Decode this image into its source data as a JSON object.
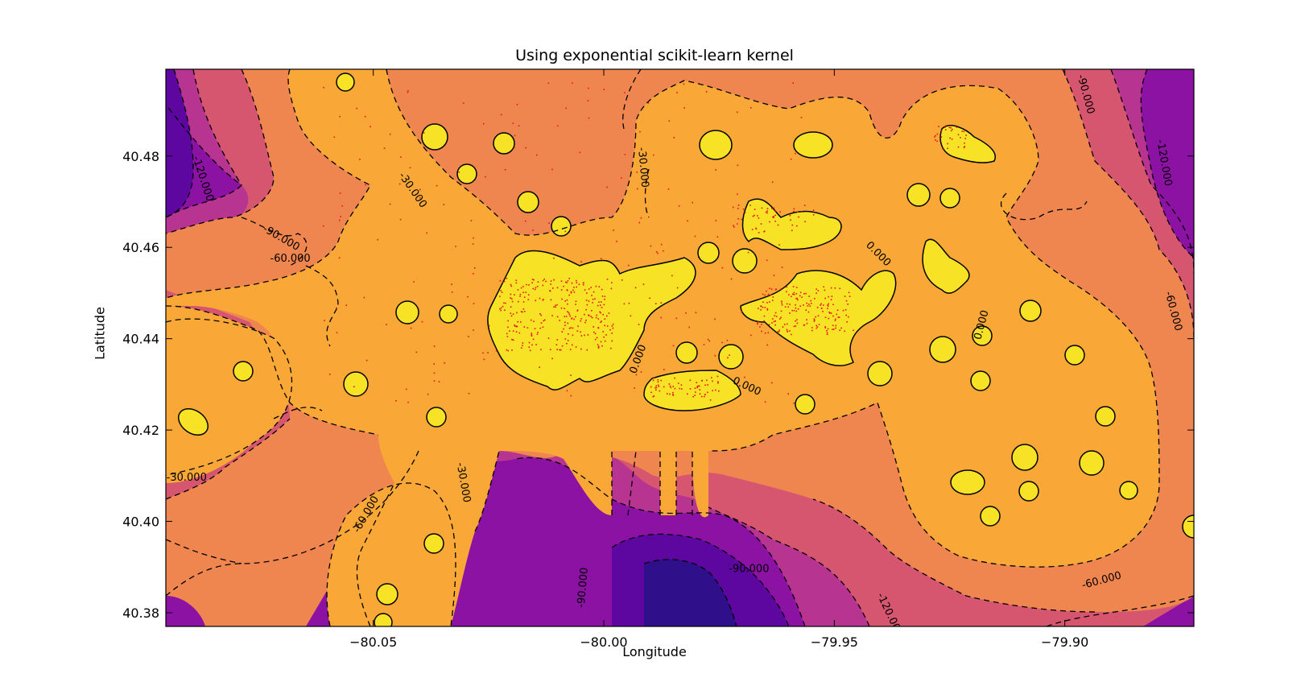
{
  "chart_data": {
    "type": "contour",
    "title": "Using exponential scikit-learn kernel",
    "xlabel": "Longitude",
    "ylabel": "Latitude",
    "xlim": [
      -80.095,
      -79.872
    ],
    "ylim": [
      40.377,
      40.499
    ],
    "x_ticks": [
      -80.05,
      -80.0,
      -79.95,
      -79.9
    ],
    "x_tick_labels": [
      "−80.05",
      "−80.00",
      "−79.95",
      "−79.90"
    ],
    "y_ticks": [
      40.38,
      40.4,
      40.42,
      40.44,
      40.46,
      40.48
    ],
    "y_tick_labels": [
      "40.38",
      "40.40",
      "40.42",
      "40.44",
      "40.46",
      "40.48"
    ],
    "contour_levels": [
      -150,
      -120,
      -90,
      -60,
      -30,
      0
    ],
    "level_colors": {
      "-150": "#2f0f8a",
      "-120": "#5e07a0",
      "-90": "#8b12a3",
      "-60": "#b83491",
      "-30": "#d6566f",
      "0": "#ef8650",
      "30": "#f9a837",
      "fill_top": "#f7e226"
    },
    "contour_labels": [
      {
        "text": "-120.000",
        "lon": -80.087,
        "lat": 40.475,
        "rot": 72
      },
      {
        "text": "-90.000",
        "lon": -80.07,
        "lat": 40.462,
        "rot": 30
      },
      {
        "text": "-60.000",
        "lon": -80.068,
        "lat": 40.4575,
        "rot": 0
      },
      {
        "text": "-30.000",
        "lon": -80.0415,
        "lat": 40.4725,
        "rot": 55
      },
      {
        "text": "-30.000",
        "lon": -80.0905,
        "lat": 40.4095,
        "rot": 0
      },
      {
        "text": "-60.000",
        "lon": -80.0515,
        "lat": 40.4015,
        "rot": -60
      },
      {
        "text": "-30.000",
        "lon": -80.0305,
        "lat": 40.4085,
        "rot": 80
      },
      {
        "text": "-90.000",
        "lon": -80.0045,
        "lat": 40.3855,
        "rot": -85
      },
      {
        "text": "-30.000",
        "lon": -79.9915,
        "lat": 40.4775,
        "rot": 85
      },
      {
        "text": "0.000",
        "lon": -79.9925,
        "lat": 40.4355,
        "rot": -70
      },
      {
        "text": "0.000",
        "lon": -79.969,
        "lat": 40.4295,
        "rot": 25
      },
      {
        "text": "0.000",
        "lon": -79.9405,
        "lat": 40.4585,
        "rot": 45
      },
      {
        "text": "0.000",
        "lon": -79.918,
        "lat": 40.443,
        "rot": -75
      },
      {
        "text": "-120.000",
        "lon": -79.938,
        "lat": 40.3795,
        "rot": 65
      },
      {
        "text": "-60.000",
        "lon": -79.892,
        "lat": 40.387,
        "rot": -15
      },
      {
        "text": "-60.000",
        "lon": -79.8765,
        "lat": 40.446,
        "rot": 75
      },
      {
        "text": "-90.000",
        "lon": -79.8955,
        "lat": 40.4935,
        "rot": 75
      },
      {
        "text": "-120.000",
        "lon": -79.8785,
        "lat": 40.4785,
        "rot": 80
      },
      {
        "text": "-90.000",
        "lon": -79.9685,
        "lat": 40.3895,
        "rot": 0
      }
    ],
    "grid": false,
    "colormap": "plasma"
  }
}
